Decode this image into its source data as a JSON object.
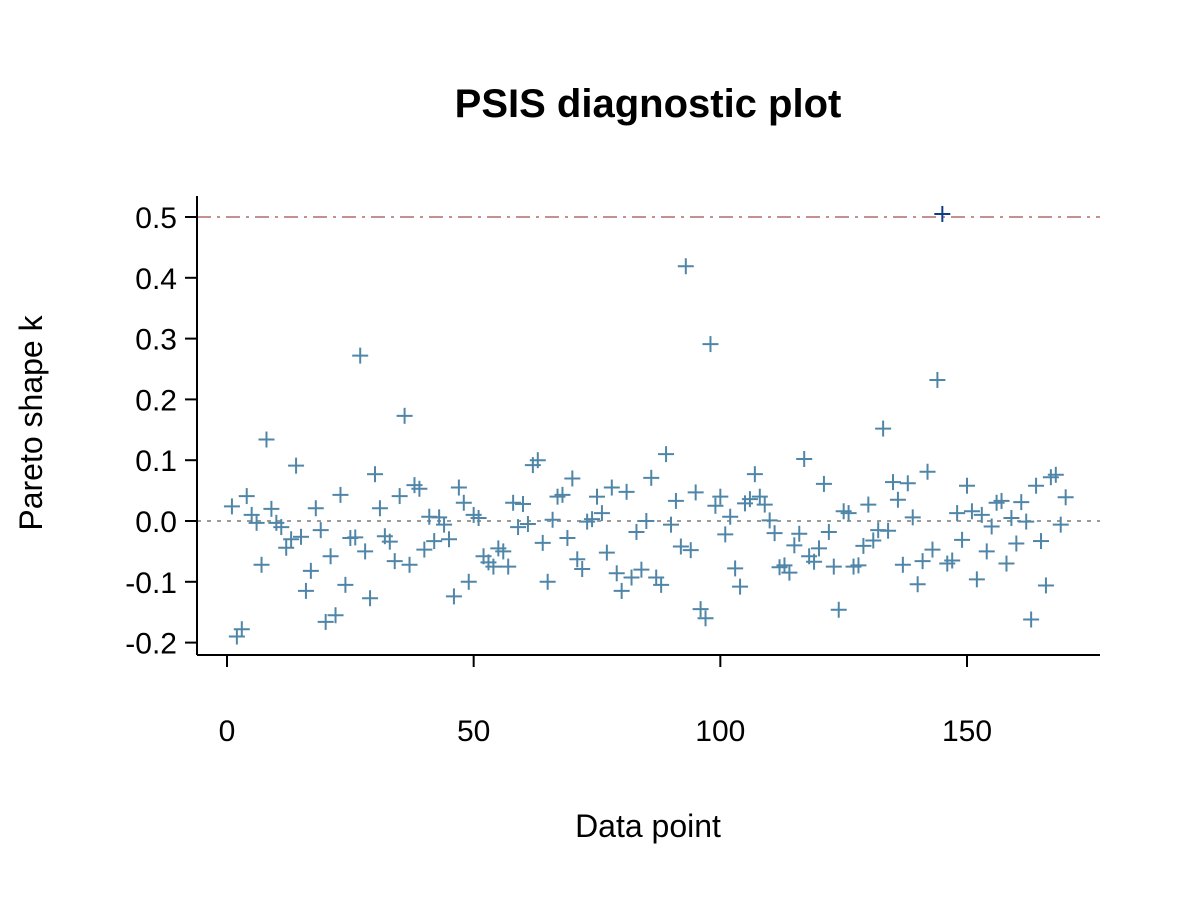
{
  "chart_data": {
    "type": "scatter",
    "title": "PSIS diagnostic plot",
    "xlabel": "Data point",
    "ylabel": "Pareto shape k",
    "xlim": [
      -6,
      177
    ],
    "ylim": [
      -0.22,
      0.535
    ],
    "xticks": [
      0,
      50,
      100,
      150
    ],
    "yticks": [
      -0.2,
      -0.1,
      0.0,
      0.1,
      0.2,
      0.3,
      0.4,
      0.5
    ],
    "ytick_labels": [
      "-0.2",
      "-0.1",
      "0.0",
      "0.1",
      "0.2",
      "0.3",
      "0.4",
      "0.5"
    ],
    "reference_lines": [
      {
        "y": 0.0,
        "style": "dotted",
        "color": "#9a9a9a"
      },
      {
        "y": 0.5,
        "style": "dashdot",
        "color": "#c49090"
      }
    ],
    "marker": "plus",
    "point_color": "#4f86a8",
    "highlight_color": "#0d3f86",
    "grid": false,
    "x": [
      1,
      2,
      3,
      4,
      5,
      6,
      7,
      8,
      9,
      10,
      11,
      12,
      13,
      14,
      15,
      16,
      17,
      18,
      19,
      20,
      21,
      22,
      23,
      24,
      25,
      26,
      27,
      28,
      29,
      30,
      31,
      32,
      33,
      34,
      35,
      36,
      37,
      38,
      39,
      40,
      41,
      42,
      43,
      44,
      45,
      46,
      47,
      48,
      49,
      50,
      51,
      52,
      53,
      54,
      55,
      56,
      57,
      58,
      59,
      60,
      61,
      62,
      63,
      64,
      65,
      66,
      67,
      68,
      69,
      70,
      71,
      72,
      73,
      74,
      75,
      76,
      77,
      78,
      79,
      80,
      81,
      82,
      83,
      84,
      85,
      86,
      87,
      88,
      89,
      90,
      91,
      92,
      93,
      94,
      95,
      96,
      97,
      98,
      99,
      100,
      101,
      102,
      103,
      104,
      105,
      106,
      107,
      108,
      109,
      110,
      111,
      112,
      113,
      114,
      115,
      116,
      117,
      118,
      119,
      120,
      121,
      122,
      123,
      124,
      125,
      126,
      127,
      128,
      129,
      130,
      131,
      132,
      133,
      134,
      135,
      136,
      137,
      138,
      139,
      140,
      141,
      142,
      143,
      144,
      145,
      146,
      147,
      148,
      149,
      150,
      151,
      152,
      153,
      154,
      155,
      156,
      157,
      158,
      159,
      160,
      161,
      162,
      163,
      164,
      165,
      166,
      167,
      168,
      169,
      170
    ],
    "y": [
      0.024,
      -0.19,
      -0.178,
      0.041,
      0.01,
      -0.003,
      -0.072,
      0.134,
      0.02,
      -0.003,
      -0.01,
      -0.044,
      -0.03,
      0.091,
      -0.026,
      -0.115,
      -0.082,
      0.021,
      -0.015,
      -0.166,
      -0.058,
      -0.155,
      0.043,
      -0.105,
      -0.028,
      -0.027,
      0.272,
      -0.05,
      -0.127,
      0.077,
      0.021,
      -0.025,
      -0.034,
      -0.066,
      0.041,
      0.173,
      -0.072,
      0.059,
      0.053,
      -0.047,
      0.007,
      -0.033,
      0.006,
      -0.006,
      -0.03,
      -0.124,
      0.055,
      0.03,
      -0.1,
      0.01,
      0.005,
      -0.058,
      -0.068,
      -0.075,
      -0.045,
      -0.05,
      -0.075,
      0.03,
      -0.01,
      0.028,
      -0.005,
      0.092,
      0.1,
      -0.036,
      -0.1,
      0.002,
      0.04,
      0.043,
      -0.028,
      0.07,
      -0.063,
      -0.079,
      -0.001,
      0.003,
      0.04,
      0.013,
      -0.052,
      0.055,
      -0.086,
      -0.115,
      0.048,
      -0.093,
      -0.018,
      -0.08,
      0.0,
      0.071,
      -0.093,
      -0.105,
      0.11,
      -0.006,
      0.033,
      -0.042,
      0.419,
      -0.048,
      0.047,
      -0.145,
      -0.16,
      0.291,
      0.025,
      0.04,
      -0.022,
      0.007,
      -0.078,
      -0.108,
      0.029,
      0.036,
      0.077,
      0.04,
      0.027,
      0.001,
      -0.02,
      -0.076,
      -0.073,
      -0.085,
      -0.04,
      -0.021,
      0.102,
      -0.058,
      -0.067,
      -0.045,
      0.061,
      -0.018,
      -0.075,
      -0.146,
      0.016,
      0.013,
      -0.075,
      -0.073,
      -0.041,
      0.027,
      -0.032,
      -0.015,
      0.152,
      -0.016,
      0.064,
      0.035,
      -0.072,
      0.062,
      0.006,
      -0.104,
      -0.066,
      0.081,
      -0.047,
      0.232,
      0.505,
      -0.07,
      -0.065,
      0.013,
      -0.031,
      0.058,
      0.016,
      -0.096,
      0.01,
      -0.05,
      -0.009,
      0.03,
      0.033,
      -0.07,
      0.005,
      -0.037,
      0.031,
      -0.001,
      -0.162,
      0.058,
      -0.033,
      -0.106,
      0.072,
      0.076,
      -0.006,
      0.039
    ],
    "highlighted_indices": [
      144
    ]
  }
}
